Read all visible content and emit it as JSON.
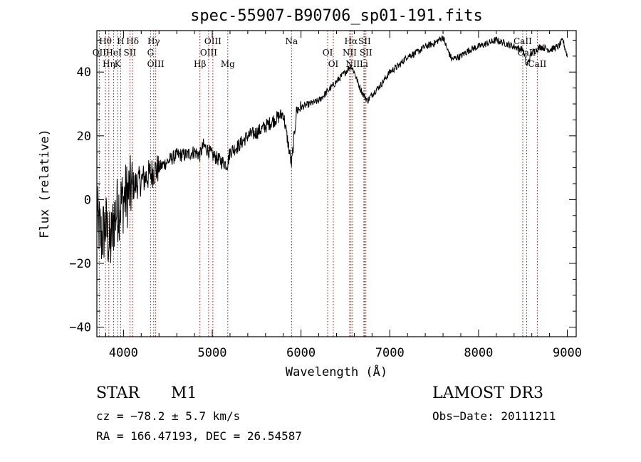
{
  "chart_data": {
    "type": "line",
    "title": "spec-55907-B90706_sp01-191.fits",
    "xlabel": "Wavelength (Å)",
    "ylabel": "Flux (relative)",
    "xlim": [
      3700,
      9100
    ],
    "ylim": [
      -43,
      53
    ],
    "xticks": [
      4000,
      5000,
      6000,
      7000,
      8000,
      9000
    ],
    "yticks": [
      -40,
      -20,
      0,
      20,
      40
    ],
    "series": [
      {
        "name": "spectrum",
        "x": [
          3700,
          3750,
          3800,
          3850,
          3900,
          3950,
          4000,
          4100,
          4200,
          4300,
          4400,
          4500,
          4600,
          4700,
          4800,
          4860,
          4900,
          5000,
          5100,
          5170,
          5200,
          5300,
          5400,
          5500,
          5600,
          5700,
          5800,
          5893,
          5950,
          6000,
          6100,
          6200,
          6300,
          6400,
          6500,
          6563,
          6600,
          6650,
          6700,
          6750,
          6800,
          6900,
          7000,
          7100,
          7200,
          7300,
          7400,
          7500,
          7600,
          7650,
          7700,
          7800,
          7900,
          8000,
          8100,
          8200,
          8300,
          8400,
          8500,
          8542,
          8600,
          8700,
          8800,
          8900,
          8950,
          9000
        ],
        "values": [
          -5,
          -12,
          -8,
          -15,
          -5,
          -2,
          0,
          4,
          6,
          8,
          10,
          12,
          14,
          14,
          15,
          14,
          17,
          14,
          12,
          11,
          15,
          17,
          20,
          21,
          23,
          25,
          27,
          11,
          28,
          29,
          30,
          31,
          34,
          37,
          40,
          42,
          40,
          36,
          33,
          31,
          33,
          36,
          40,
          42,
          45,
          46,
          48,
          49,
          51,
          47,
          44,
          45,
          47,
          48,
          49,
          50,
          49,
          48,
          47,
          42,
          46,
          48,
          47,
          48,
          50,
          45
        ]
      }
    ],
    "lines": [
      {
        "label": "Hθ",
        "wl": 3797
      },
      {
        "label": "OII",
        "wl": 3727
      },
      {
        "label": "K",
        "wl": 3934
      },
      {
        "label": "H",
        "wl": 3969
      },
      {
        "label": "HeI",
        "wl": 3889
      },
      {
        "label": "Hη",
        "wl": 3835
      },
      {
        "label": "Hδ",
        "wl": 4102
      },
      {
        "label": "SII",
        "wl": 4072
      },
      {
        "label": "OIII",
        "wl": 4363
      },
      {
        "label": "Hγ",
        "wl": 4340
      },
      {
        "label": "G",
        "wl": 4305
      },
      {
        "label": "Hβ",
        "wl": 4861
      },
      {
        "label": "OIII",
        "wl": 5007
      },
      {
        "label": "OIII",
        "wl": 4959
      },
      {
        "label": "Mg",
        "wl": 5175
      },
      {
        "label": "Na",
        "wl": 5893
      },
      {
        "label": "OI",
        "wl": 6300
      },
      {
        "label": "OI",
        "wl": 6364
      },
      {
        "label": "Hα",
        "wl": 6563
      },
      {
        "label": "NII",
        "wl": 6548
      },
      {
        "label": "NII",
        "wl": 6583
      },
      {
        "label": "SII",
        "wl": 6716
      },
      {
        "label": "SII",
        "wl": 6731
      },
      {
        "label": "Li",
        "wl": 6708
      },
      {
        "label": "CaII",
        "wl": 8498
      },
      {
        "label": "CaII",
        "wl": 8542
      },
      {
        "label": "CaII",
        "wl": 8662
      }
    ]
  },
  "info": {
    "class": "STAR",
    "subclass": "M1",
    "survey": "LAMOST DR3",
    "cz": "cz = −78.2 ± 5.7 km/s",
    "obs_date": "Obs−Date: 20111211",
    "radec": "RA = 166.47193, DEC =  26.54587"
  }
}
